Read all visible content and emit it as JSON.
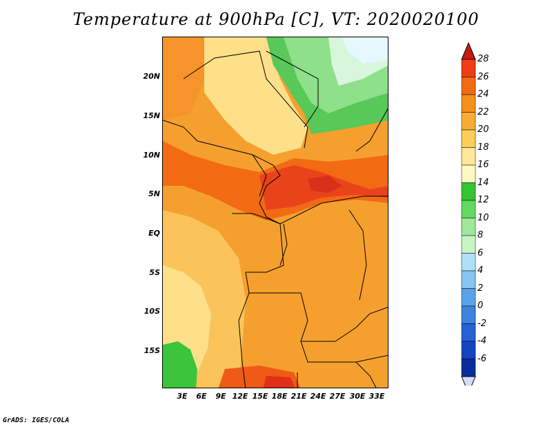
{
  "title": "Temperature at 900hPa [C], VT: 2020020100",
  "credit": "GrADS: IGES/COLA",
  "lat_labels": [
    "20N",
    "15N",
    "10N",
    "5N",
    "EQ",
    "5S",
    "10S",
    "15S"
  ],
  "lon_labels": [
    "3E",
    "6E",
    "9E",
    "12E",
    "15E",
    "18E",
    "21E",
    "24E",
    "27E",
    "30E",
    "33E"
  ],
  "colorbar": {
    "labels": [
      "28",
      "26",
      "24",
      "22",
      "20",
      "18",
      "16",
      "14",
      "12",
      "10",
      "8",
      "6",
      "4",
      "2",
      "0",
      "-2",
      "-4",
      "-6"
    ],
    "colors": [
      "#e8201e",
      "#ef3d16",
      "#f26a14",
      "#f5901c",
      "#f7ad34",
      "#fbcd5a",
      "#fee899",
      "#fdf9c2",
      "#34c434",
      "#62d962",
      "#9de89a",
      "#c9f5c2",
      "#b0e0f9",
      "#88c5f2",
      "#5ba3e8",
      "#3d83de",
      "#2562d3",
      "#1444bf",
      "#0b2c9a",
      "#081c66"
    ],
    "top_arrow_color": "#c8190f",
    "bottom_arrow_color": "#d8dcf8"
  }
}
